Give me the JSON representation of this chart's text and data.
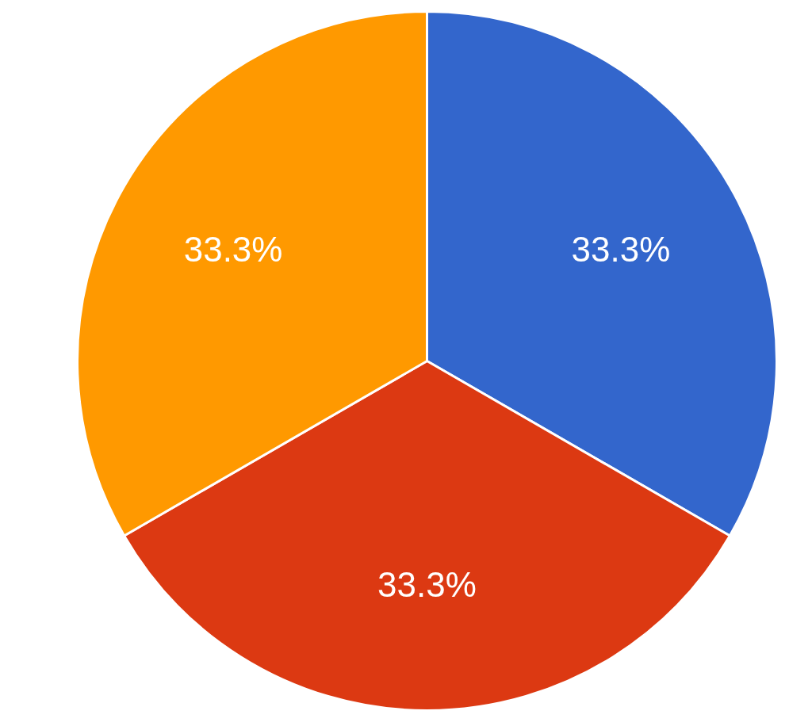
{
  "chart_data": {
    "type": "pie",
    "categories": [
      null,
      null,
      null
    ],
    "values": [
      33.3,
      33.3,
      33.3
    ],
    "colors": [
      "#3366cc",
      "#dc3912",
      "#ff9900"
    ],
    "value_labels": [
      "33.3%",
      "33.3%",
      "33.3%"
    ]
  }
}
